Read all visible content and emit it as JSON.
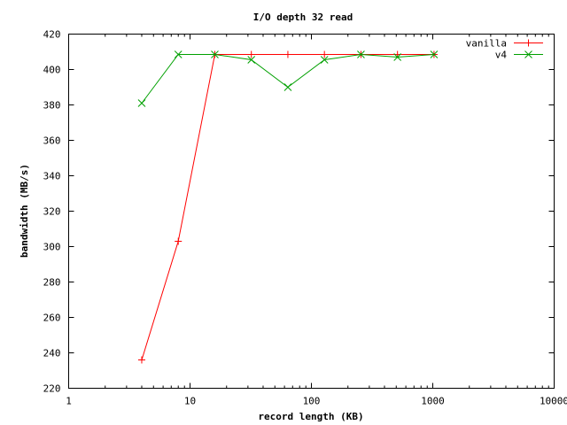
{
  "chart_data": {
    "type": "line",
    "title": "I/O depth 32 read",
    "xlabel": "record length (KB)",
    "ylabel": "bandwidth (MB/s)",
    "x_scale": "log",
    "xlim": [
      1,
      10000
    ],
    "ylim": [
      220,
      420
    ],
    "x_ticks": [
      1,
      10,
      100,
      1000,
      10000
    ],
    "x_tick_labels": [
      "1",
      "10",
      "100",
      "1000",
      "10000"
    ],
    "y_ticks": [
      220,
      240,
      260,
      280,
      300,
      320,
      340,
      360,
      380,
      400,
      420
    ],
    "grid": false,
    "legend_position": "top-right",
    "x": [
      4,
      8,
      16,
      32,
      64,
      128,
      256,
      512,
      1024
    ],
    "series": [
      {
        "name": "vanilla",
        "color": "#ff0000",
        "marker": "plus",
        "values": [
          236,
          303,
          408.5,
          408.5,
          408.5,
          408.5,
          408.5,
          408.5,
          408.5
        ]
      },
      {
        "name": "v4",
        "color": "#00a000",
        "marker": "cross",
        "values": [
          381,
          408.5,
          408.5,
          405.5,
          390,
          405.5,
          408.5,
          407,
          408.5
        ]
      }
    ]
  }
}
